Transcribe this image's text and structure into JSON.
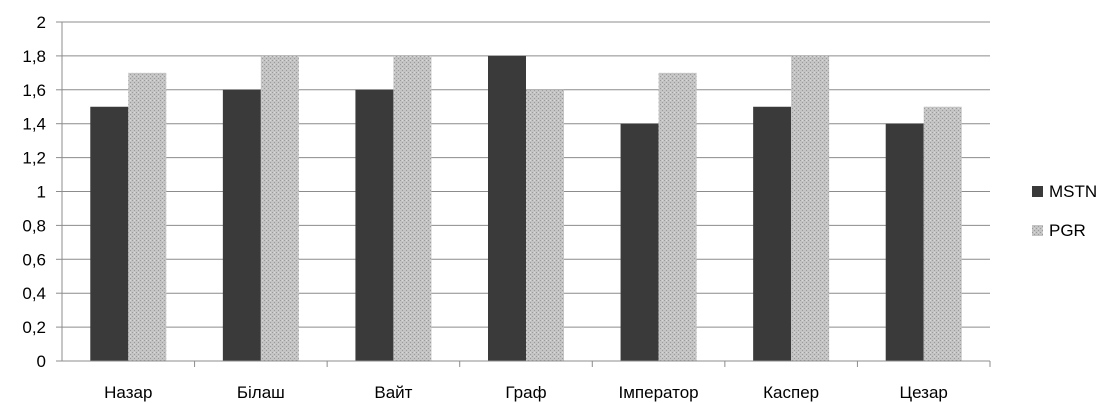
{
  "chart_data": {
    "type": "bar",
    "categories": [
      "Назар",
      "Білаш",
      "Вайт",
      "Граф",
      "Імператор",
      "Каспер",
      "Цезар"
    ],
    "series": [
      {
        "name": "MSTN",
        "values": [
          1.5,
          1.6,
          1.6,
          1.8,
          1.4,
          1.5,
          1.4
        ],
        "color": "#3a3a3a"
      },
      {
        "name": "PGR",
        "values": [
          1.7,
          1.8,
          1.8,
          1.6,
          1.7,
          1.8,
          1.5
        ],
        "color": "#b4b4b4"
      }
    ],
    "ylim": [
      0,
      2
    ],
    "yticks": [
      "0",
      "0,2",
      "0,4",
      "0,6",
      "0,8",
      "1",
      "1,2",
      "1,4",
      "1,6",
      "1,8",
      "2"
    ],
    "grid": true,
    "legend": "right",
    "title": "",
    "xlabel": "",
    "ylabel": ""
  }
}
